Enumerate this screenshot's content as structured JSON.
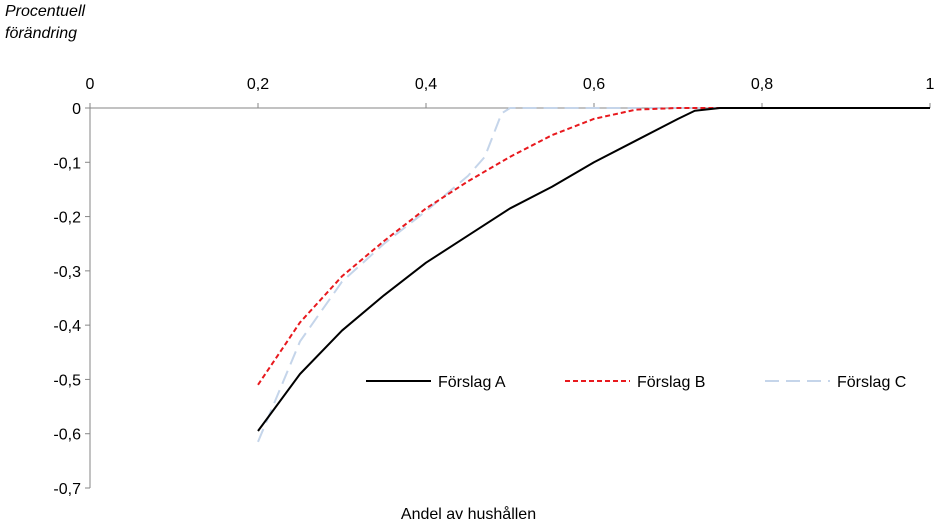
{
  "chart_data": {
    "type": "line",
    "ylabel_lines": [
      "Procentuell",
      "förändring"
    ],
    "xlabel": "Andel av hushållen",
    "xlim": [
      0,
      1
    ],
    "ylim": [
      -0.7,
      0
    ],
    "x_ticks": [
      "0",
      "0,2",
      "0,4",
      "0,6",
      "0,8",
      "1"
    ],
    "x_tick_values": [
      0,
      0.2,
      0.4,
      0.6,
      0.8,
      1
    ],
    "y_ticks": [
      "0",
      "-0,1",
      "-0,2",
      "-0,3",
      "-0,4",
      "-0,5",
      "-0,6",
      "-0,7"
    ],
    "y_tick_values": [
      0,
      -0.1,
      -0.2,
      -0.3,
      -0.4,
      -0.5,
      -0.6,
      -0.7
    ],
    "grid": false,
    "legend_position": "center-right",
    "series": [
      {
        "name": "Förslag A",
        "color": "#000000",
        "style": "solid",
        "x": [
          0.2,
          0.25,
          0.3,
          0.35,
          0.4,
          0.45,
          0.5,
          0.55,
          0.6,
          0.65,
          0.7,
          0.72,
          0.75,
          0.8,
          0.85,
          0.9,
          0.95,
          1.0
        ],
        "y": [
          -0.595,
          -0.49,
          -0.41,
          -0.345,
          -0.285,
          -0.235,
          -0.185,
          -0.145,
          -0.1,
          -0.06,
          -0.02,
          -0.005,
          0,
          0,
          0,
          0,
          0,
          0
        ]
      },
      {
        "name": "Förslag B",
        "color": "#e8191e",
        "style": "dashed",
        "x": [
          0.2,
          0.25,
          0.3,
          0.35,
          0.4,
          0.45,
          0.5,
          0.55,
          0.6,
          0.65,
          0.7,
          0.75,
          0.8,
          0.85,
          0.9,
          0.95,
          1.0
        ],
        "y": [
          -0.51,
          -0.395,
          -0.31,
          -0.245,
          -0.185,
          -0.135,
          -0.09,
          -0.05,
          -0.02,
          -0.003,
          0,
          0,
          0,
          0,
          0,
          0,
          0
        ]
      },
      {
        "name": "Förslag C",
        "color": "#c5d5ea",
        "style": "longdash",
        "x": [
          0.2,
          0.25,
          0.3,
          0.35,
          0.4,
          0.45,
          0.47,
          0.49,
          0.5,
          0.55,
          0.6,
          0.65,
          0.7,
          0.75,
          0.8,
          0.85,
          0.9,
          0.95,
          1.0
        ],
        "y": [
          -0.615,
          -0.43,
          -0.32,
          -0.25,
          -0.19,
          -0.125,
          -0.09,
          -0.01,
          0,
          0,
          0,
          0,
          0,
          0,
          0,
          0,
          0,
          0,
          0
        ]
      }
    ]
  }
}
